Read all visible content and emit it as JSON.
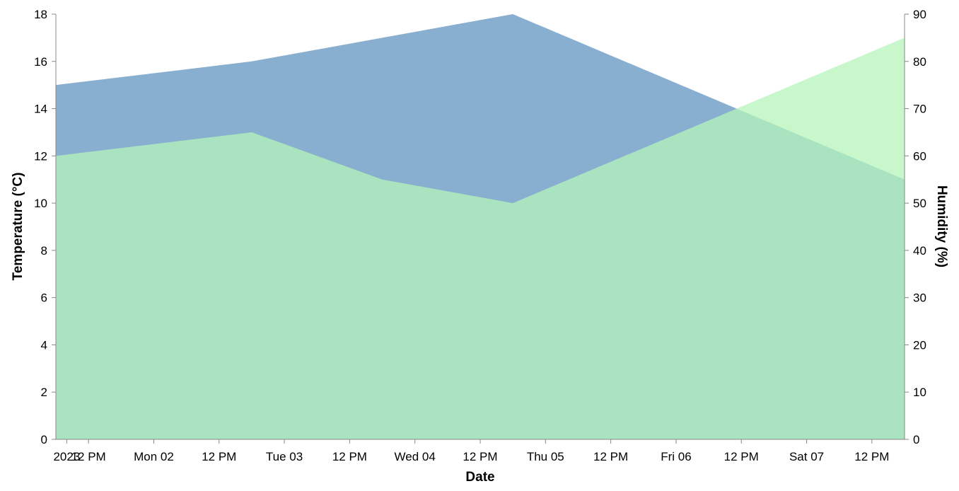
{
  "chart_data": {
    "type": "area",
    "x": [
      "2023-01-01T06:00",
      "2023-01-02T18:00",
      "2023-01-03T18:00",
      "2023-01-04T18:00",
      "2023-01-07T18:00"
    ],
    "series": [
      {
        "axis": "left",
        "color": "#88aed0",
        "values": [
          15,
          16,
          17,
          18,
          11
        ]
      },
      {
        "axis": "right",
        "color": "#b6f4b9",
        "values": [
          60,
          65,
          55,
          50,
          85
        ]
      }
    ],
    "note_overlap_color": "#93d7aa",
    "xlabel": "Date",
    "ylabel_left": "Temperature (°C)",
    "ylabel_right": "Humidity (%)",
    "ylim_left": [
      0,
      18
    ],
    "ylim_right": [
      0,
      90
    ],
    "yticks_left": [
      0,
      2,
      4,
      6,
      8,
      10,
      12,
      14,
      16,
      18
    ],
    "yticks_right": [
      0,
      10,
      20,
      30,
      40,
      50,
      60,
      70,
      80,
      90
    ],
    "xlim": [
      "2023-01-01T06:00",
      "2023-01-07T18:00"
    ],
    "xticks": [
      {
        "t": "2023-01-01T08:00",
        "label": "2023"
      },
      {
        "t": "2023-01-01T12:00",
        "label": "12 PM"
      },
      {
        "t": "2023-01-02T00:00",
        "label": "Mon 02"
      },
      {
        "t": "2023-01-02T12:00",
        "label": "12 PM"
      },
      {
        "t": "2023-01-03T00:00",
        "label": "Tue 03"
      },
      {
        "t": "2023-01-03T12:00",
        "label": "12 PM"
      },
      {
        "t": "2023-01-04T00:00",
        "label": "Wed 04"
      },
      {
        "t": "2023-01-04T12:00",
        "label": "12 PM"
      },
      {
        "t": "2023-01-05T00:00",
        "label": "Thu 05"
      },
      {
        "t": "2023-01-05T12:00",
        "label": "12 PM"
      },
      {
        "t": "2023-01-06T00:00",
        "label": "Fri 06"
      },
      {
        "t": "2023-01-06T12:00",
        "label": "12 PM"
      },
      {
        "t": "2023-01-07T00:00",
        "label": "Sat 07"
      },
      {
        "t": "2023-01-07T12:00",
        "label": "12 PM"
      }
    ],
    "grid": false,
    "legend": "none"
  }
}
